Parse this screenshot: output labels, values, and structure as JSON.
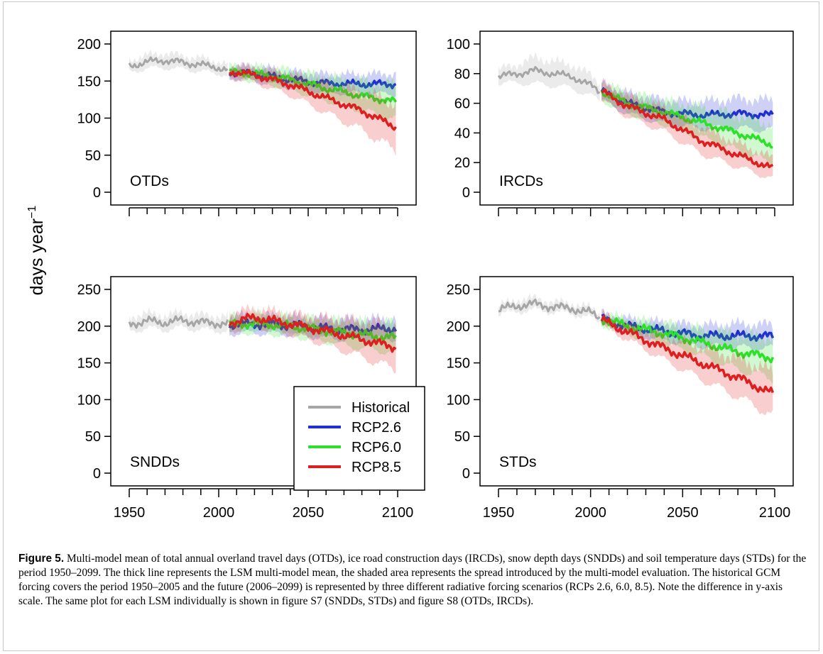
{
  "figure": {
    "ylabel": "days year",
    "ylabel_exponent": "−1",
    "xticks": [
      1950,
      2000,
      2050,
      2100
    ],
    "legend": [
      "Historical",
      "RCP2.6",
      "RCP6.0",
      "RCP8.5"
    ],
    "colors": {
      "Historical": "#a6a6a6",
      "RCP2.6": "#1f2fd0",
      "RCP6.0": "#2fe02a",
      "RCP8.5": "#dd1f1f"
    }
  },
  "chart_data": [
    {
      "type": "line",
      "panel_label": "OTDs",
      "xlim": [
        1950,
        2100
      ],
      "ylim": [
        0,
        200
      ],
      "yticks": [
        0,
        50,
        100,
        150,
        200
      ],
      "series": [
        {
          "name": "Historical",
          "x": [
            1950,
            1960,
            1970,
            1980,
            1990,
            2000,
            2005
          ],
          "values": [
            170,
            176,
            178,
            175,
            172,
            168,
            165
          ],
          "spread": [
            8,
            9,
            10,
            9,
            9,
            8,
            8
          ]
        },
        {
          "name": "RCP2.6",
          "x": [
            2006,
            2020,
            2040,
            2060,
            2080,
            2099
          ],
          "values": [
            162,
            160,
            152,
            147,
            146,
            146
          ],
          "spread": [
            8,
            10,
            11,
            12,
            13,
            14
          ]
        },
        {
          "name": "RCP6.0",
          "x": [
            2006,
            2020,
            2040,
            2060,
            2080,
            2099
          ],
          "values": [
            162,
            160,
            152,
            140,
            130,
            122
          ],
          "spread": [
            8,
            10,
            13,
            16,
            20,
            24
          ]
        },
        {
          "name": "RCP8.5",
          "x": [
            2006,
            2020,
            2040,
            2060,
            2080,
            2099
          ],
          "values": [
            163,
            158,
            145,
            127,
            110,
            88
          ],
          "spread": [
            8,
            10,
            14,
            20,
            26,
            32
          ]
        }
      ]
    },
    {
      "type": "line",
      "panel_label": "IRCDs",
      "xlim": [
        1950,
        2100
      ],
      "ylim": [
        0,
        100
      ],
      "yticks": [
        0,
        20,
        40,
        60,
        80,
        100
      ],
      "series": [
        {
          "name": "Historical",
          "x": [
            1950,
            1960,
            1970,
            1980,
            1990,
            2000,
            2005
          ],
          "values": [
            78,
            80,
            82,
            80,
            78,
            72,
            68
          ],
          "spread": [
            5,
            6,
            9,
            8,
            8,
            7,
            6
          ]
        },
        {
          "name": "RCP2.6",
          "x": [
            2006,
            2020,
            2040,
            2060,
            2080,
            2099
          ],
          "values": [
            68,
            60,
            54,
            52,
            53,
            52
          ],
          "spread": [
            6,
            7,
            8,
            9,
            10,
            10
          ]
        },
        {
          "name": "RCP6.0",
          "x": [
            2006,
            2020,
            2040,
            2060,
            2080,
            2099
          ],
          "values": [
            68,
            60,
            54,
            47,
            40,
            32
          ],
          "spread": [
            6,
            7,
            8,
            10,
            12,
            13
          ]
        },
        {
          "name": "RCP8.5",
          "x": [
            2006,
            2020,
            2040,
            2060,
            2080,
            2099
          ],
          "values": [
            68,
            58,
            49,
            35,
            25,
            16
          ],
          "spread": [
            6,
            7,
            8,
            9,
            8,
            7
          ]
        }
      ]
    },
    {
      "type": "line",
      "panel_label": "SNDDs",
      "xlim": [
        1950,
        2100
      ],
      "ylim": [
        0,
        250
      ],
      "yticks": [
        0,
        50,
        100,
        150,
        200,
        250
      ],
      "series": [
        {
          "name": "Historical",
          "x": [
            1950,
            1960,
            1970,
            1980,
            1990,
            2000,
            2005
          ],
          "values": [
            203,
            207,
            205,
            208,
            205,
            204,
            203
          ],
          "spread": [
            10,
            10,
            10,
            10,
            10,
            10,
            10
          ]
        },
        {
          "name": "RCP2.6",
          "x": [
            2006,
            2020,
            2040,
            2060,
            2080,
            2099
          ],
          "values": [
            202,
            203,
            201,
            197,
            195,
            197
          ],
          "spread": [
            12,
            12,
            12,
            13,
            14,
            14
          ]
        },
        {
          "name": "RCP6.0",
          "x": [
            2006,
            2020,
            2040,
            2060,
            2080,
            2099
          ],
          "values": [
            202,
            204,
            200,
            194,
            188,
            184
          ],
          "spread": [
            12,
            12,
            13,
            15,
            18,
            20
          ]
        },
        {
          "name": "RCP8.5",
          "x": [
            2006,
            2020,
            2040,
            2060,
            2080,
            2099
          ],
          "values": [
            205,
            212,
            203,
            193,
            182,
            171
          ],
          "spread": [
            12,
            12,
            14,
            18,
            24,
            30
          ]
        }
      ]
    },
    {
      "type": "line",
      "panel_label": "STDs",
      "xlim": [
        1950,
        2100
      ],
      "ylim": [
        0,
        250
      ],
      "yticks": [
        0,
        50,
        100,
        150,
        200,
        250
      ],
      "series": [
        {
          "name": "Historical",
          "x": [
            1950,
            1960,
            1970,
            1980,
            1990,
            2000,
            2005
          ],
          "values": [
            222,
            228,
            230,
            226,
            224,
            218,
            212
          ],
          "spread": [
            6,
            8,
            8,
            7,
            7,
            7,
            6
          ]
        },
        {
          "name": "RCP2.6",
          "x": [
            2006,
            2020,
            2040,
            2060,
            2080,
            2099
          ],
          "values": [
            210,
            200,
            193,
            187,
            187,
            186
          ],
          "spread": [
            8,
            10,
            12,
            14,
            16,
            16
          ]
        },
        {
          "name": "RCP6.0",
          "x": [
            2006,
            2020,
            2040,
            2060,
            2080,
            2099
          ],
          "values": [
            210,
            200,
            190,
            178,
            165,
            157
          ],
          "spread": [
            8,
            10,
            14,
            18,
            24,
            28
          ]
        },
        {
          "name": "RCP8.5",
          "x": [
            2006,
            2020,
            2040,
            2060,
            2080,
            2099
          ],
          "values": [
            208,
            192,
            170,
            150,
            130,
            108
          ],
          "spread": [
            8,
            10,
            16,
            22,
            26,
            30
          ]
        }
      ]
    }
  ],
  "caption": {
    "label": "Figure 5.",
    "text": "Multi-model mean of total annual overland travel days (OTDs), ice road construction days (IRCDs), snow depth days (SNDDs) and soil temperature days (STDs) for the period 1950–2099. The thick line represents the LSM multi-model mean, the shaded area represents the spread introduced by the multi-model evaluation. The historical GCM forcing covers the period 1950–2005 and the future (2006–2099) is represented by three different radiative forcing scenarios (RCPs 2.6, 6.0, 8.5). Note the difference in y-axis scale. The same plot for each LSM individually is shown in figure S7 (SNDDs, STDs) and figure S8 (OTDs, IRCDs)."
  }
}
